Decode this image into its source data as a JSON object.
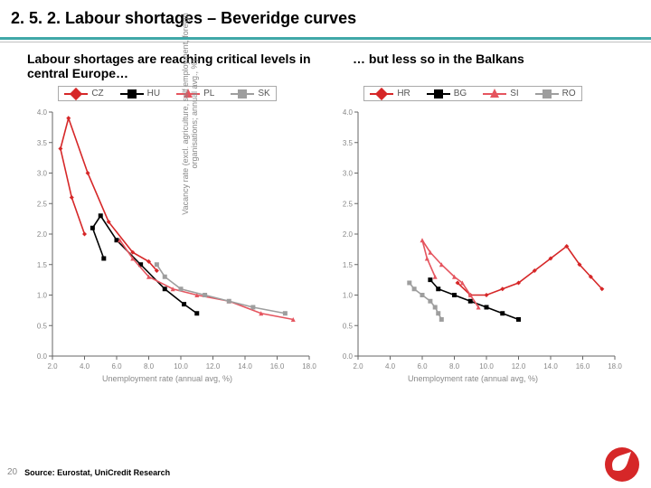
{
  "header": {
    "title": "2. 5. 2. Labour shortages – Beveridge curves"
  },
  "subtitle": {
    "left": "Labour shortages are reaching critical levels in central Europe…",
    "right": "… but less so in the Balkans"
  },
  "axes": {
    "ylabel": "Vacancy rate (excl. agriculture, self employment, foreign organisations; annual avg., %)",
    "xlabel": "Unemployment rate (annual avg, %)",
    "xlim": [
      2.0,
      18.0
    ],
    "xtick_step": 2.0,
    "ylim": [
      0.0,
      4.0
    ],
    "ytick_step": 0.5,
    "axis_color": "#666666",
    "tick_fontsize": 8,
    "tick_color": "#888888",
    "label_fontsize": 9
  },
  "charts": [
    {
      "title_ref": "subtitle.left",
      "series": [
        {
          "label": "CZ",
          "color": "#d62728",
          "marker": "diamond",
          "points": [
            [
              8.5,
              1.4
            ],
            [
              8.0,
              1.55
            ],
            [
              7.0,
              1.7
            ],
            [
              5.5,
              2.2
            ],
            [
              4.2,
              3.0
            ],
            [
              3.0,
              3.9
            ],
            [
              2.5,
              3.4
            ],
            [
              3.2,
              2.6
            ],
            [
              4.0,
              2.0
            ]
          ]
        },
        {
          "label": "HU",
          "color": "#000000",
          "marker": "square",
          "points": [
            [
              11.0,
              0.7
            ],
            [
              10.2,
              0.85
            ],
            [
              9.0,
              1.1
            ],
            [
              7.5,
              1.5
            ],
            [
              6.0,
              1.9
            ],
            [
              5.0,
              2.3
            ],
            [
              4.5,
              2.1
            ],
            [
              5.2,
              1.6
            ]
          ]
        },
        {
          "label": "PL",
          "color": "#e5555f",
          "marker": "triangle",
          "points": [
            [
              17.0,
              0.6
            ],
            [
              15.0,
              0.7
            ],
            [
              13.0,
              0.9
            ],
            [
              11.0,
              1.0
            ],
            [
              9.5,
              1.1
            ],
            [
              8.0,
              1.3
            ],
            [
              7.0,
              1.6
            ],
            [
              6.2,
              1.9
            ]
          ]
        },
        {
          "label": "SK",
          "color": "#9e9e9e",
          "marker": "square",
          "points": [
            [
              16.5,
              0.7
            ],
            [
              14.5,
              0.8
            ],
            [
              13.0,
              0.9
            ],
            [
              11.5,
              1.0
            ],
            [
              10.0,
              1.1
            ],
            [
              9.0,
              1.3
            ],
            [
              8.5,
              1.5
            ]
          ]
        }
      ]
    },
    {
      "title_ref": "subtitle.right",
      "series": [
        {
          "label": "HR",
          "color": "#d62728",
          "marker": "diamond",
          "points": [
            [
              17.2,
              1.1
            ],
            [
              16.5,
              1.3
            ],
            [
              15.8,
              1.5
            ],
            [
              15.0,
              1.8
            ],
            [
              14.0,
              1.6
            ],
            [
              13.0,
              1.4
            ],
            [
              12.0,
              1.2
            ],
            [
              11.0,
              1.1
            ],
            [
              10.0,
              1.0
            ],
            [
              9.0,
              1.0
            ],
            [
              8.2,
              1.2
            ]
          ]
        },
        {
          "label": "BG",
          "color": "#000000",
          "marker": "square",
          "points": [
            [
              12.0,
              0.6
            ],
            [
              11.0,
              0.7
            ],
            [
              10.0,
              0.8
            ],
            [
              9.0,
              0.9
            ],
            [
              8.0,
              1.0
            ],
            [
              7.0,
              1.1
            ],
            [
              6.5,
              1.25
            ]
          ]
        },
        {
          "label": "SI",
          "color": "#e5555f",
          "marker": "triangle",
          "points": [
            [
              9.5,
              0.8
            ],
            [
              9.0,
              1.0
            ],
            [
              8.5,
              1.2
            ],
            [
              8.0,
              1.3
            ],
            [
              7.2,
              1.5
            ],
            [
              6.5,
              1.7
            ],
            [
              6.0,
              1.9
            ],
            [
              6.3,
              1.6
            ],
            [
              6.8,
              1.3
            ]
          ]
        },
        {
          "label": "RO",
          "color": "#9e9e9e",
          "marker": "square",
          "points": [
            [
              7.2,
              0.6
            ],
            [
              7.0,
              0.7
            ],
            [
              6.8,
              0.8
            ],
            [
              6.5,
              0.9
            ],
            [
              6.0,
              1.0
            ],
            [
              5.5,
              1.1
            ],
            [
              5.2,
              1.2
            ]
          ]
        }
      ]
    }
  ],
  "style": {
    "line_width": 1.6,
    "marker_size": 5,
    "legend_fontsize": 10,
    "legend_border": "#aaaaaa",
    "background": "#ffffff"
  },
  "footer": {
    "page": "20",
    "source": "Source: Eurostat, UniCredit Research"
  },
  "logo": {
    "bg": "#d62728",
    "fg": "#ffffff"
  }
}
